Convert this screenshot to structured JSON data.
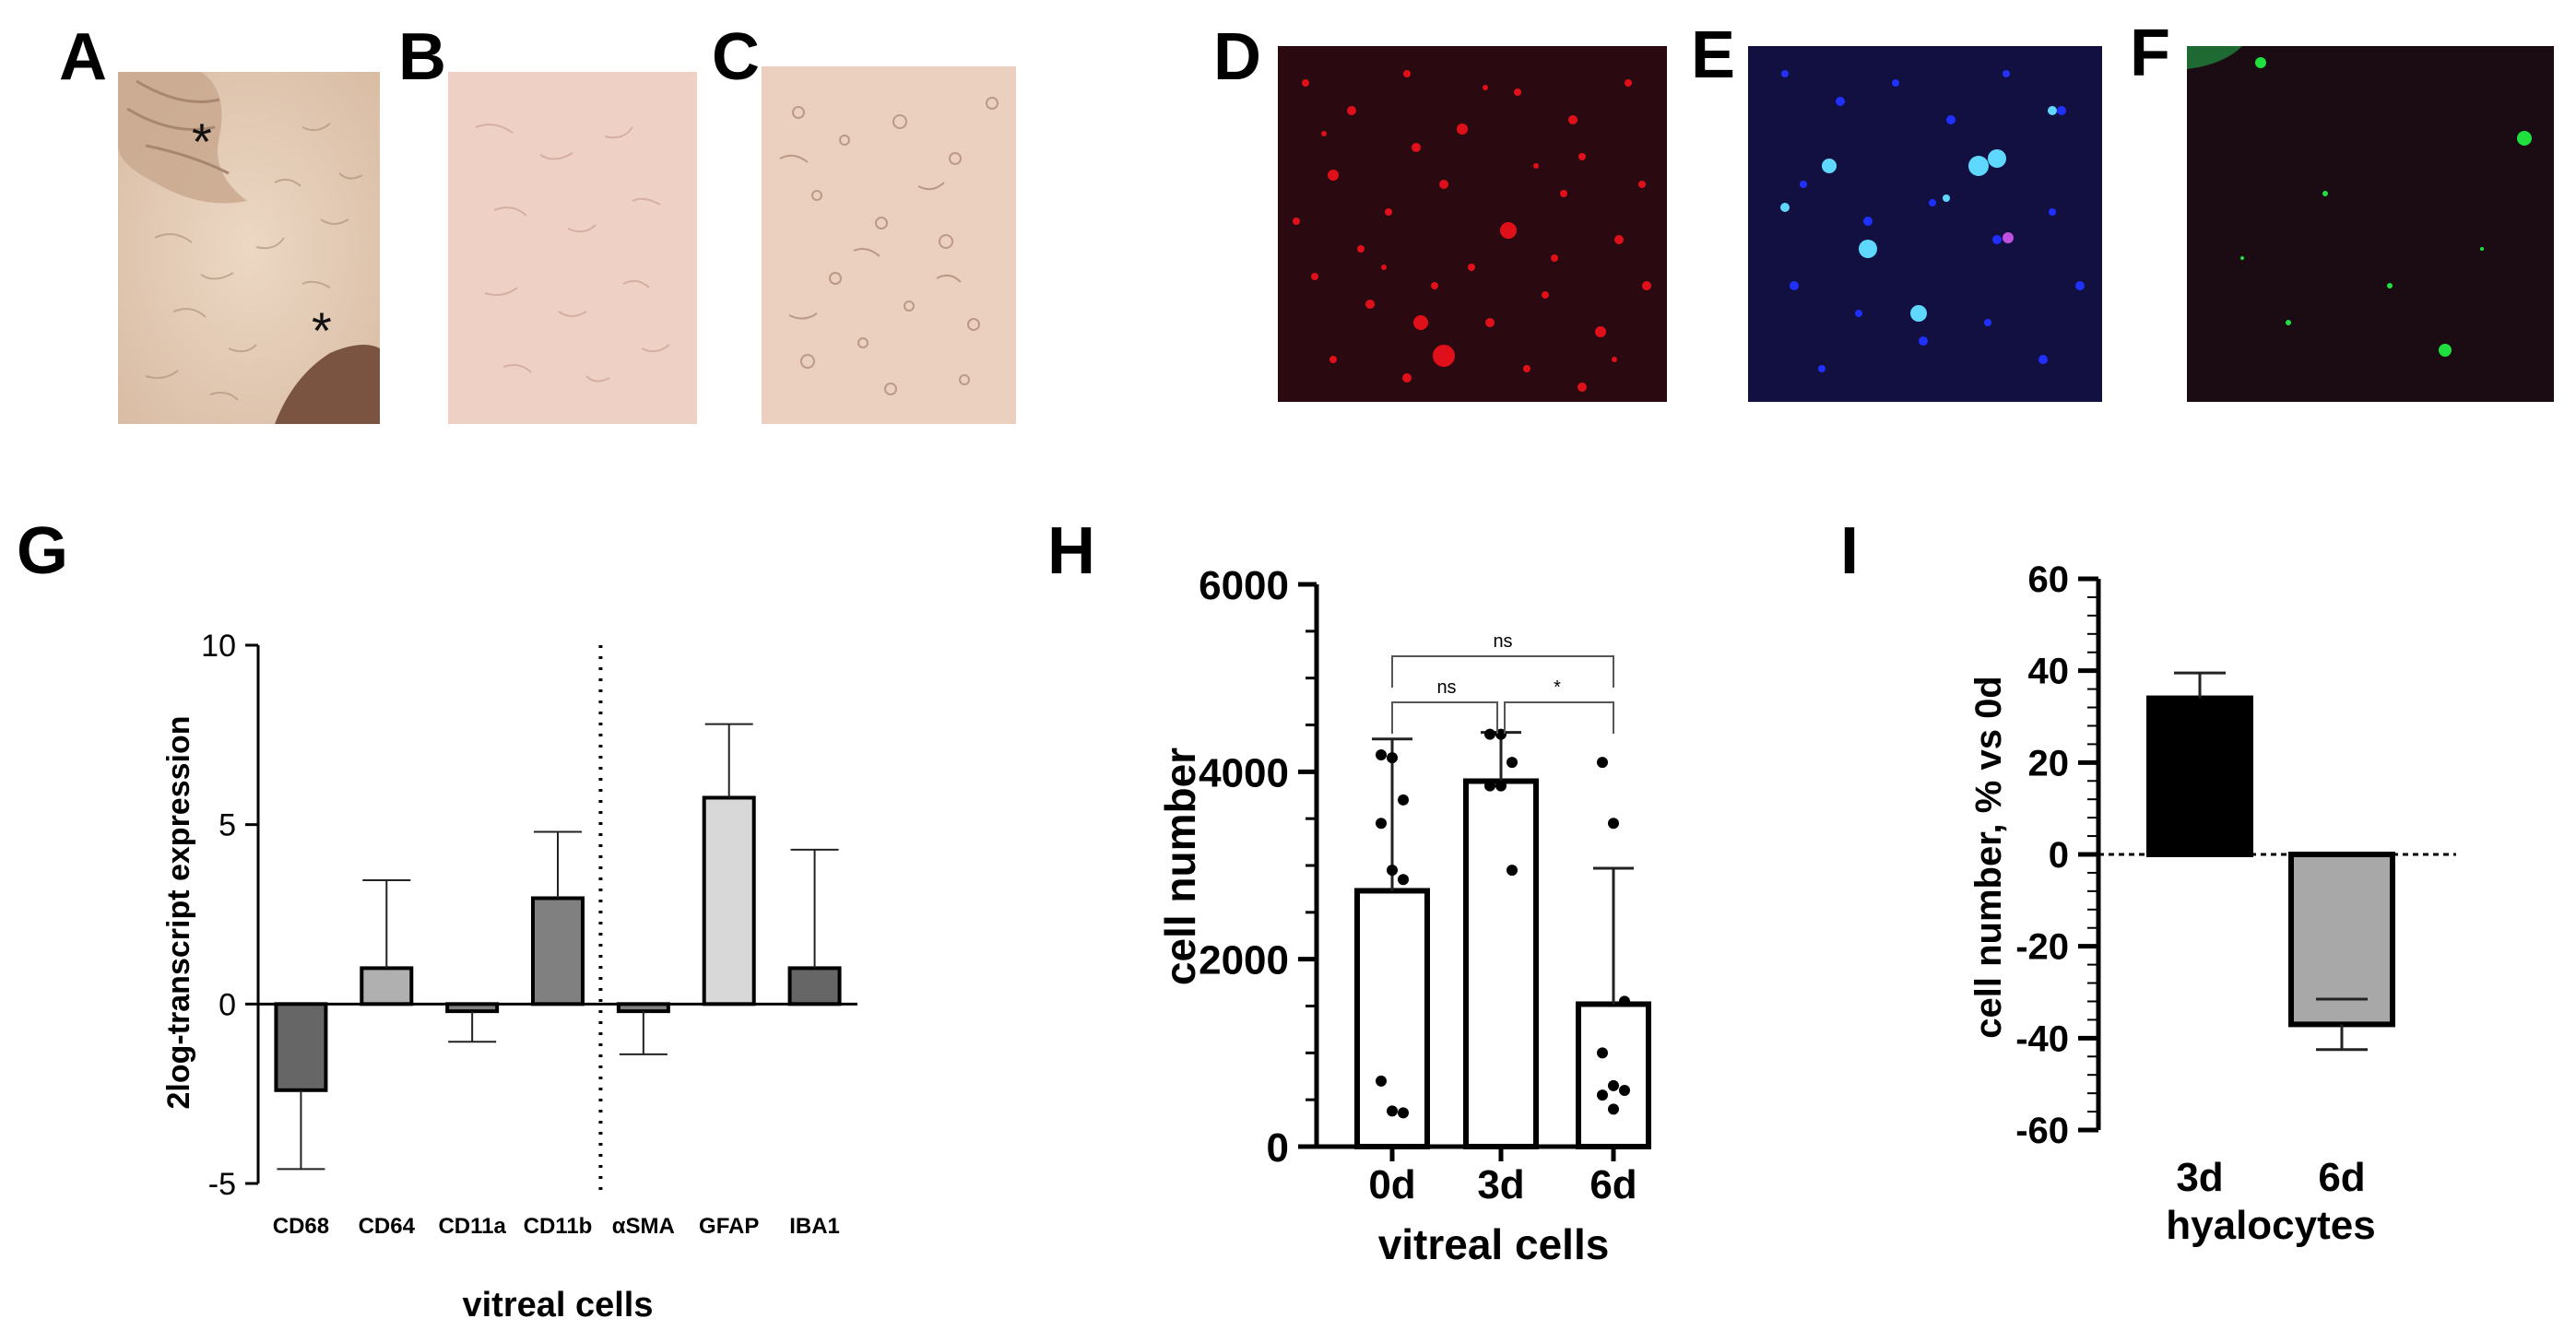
{
  "panels": {
    "A": "A",
    "B": "B",
    "C": "C",
    "D": "D",
    "E": "E",
    "F": "F",
    "G": "G",
    "H": "H",
    "I": "I"
  },
  "micrographs": {
    "A_markers": [
      "*",
      "*"
    ],
    "colors": {
      "brightfield": "#e8c8b8",
      "red_stain": "#e0101a",
      "blue_stain": "#2030ff",
      "cyan_stain": "#5fd8ff",
      "green_stain": "#20e040",
      "dark_bg": "#180c18"
    }
  },
  "chart_data": [
    {
      "id": "G",
      "type": "bar",
      "categories": [
        "CD68",
        "CD64",
        "CD11a",
        "CD11b",
        "αSMA",
        "GFAP",
        "IBA1"
      ],
      "values": [
        -2.4,
        1.0,
        -0.2,
        2.95,
        -0.2,
        5.75,
        1.0
      ],
      "error_bars": [
        2.2,
        2.45,
        0.85,
        1.85,
        1.2,
        2.05,
        3.3
      ],
      "bar_colors": [
        "#666666",
        "#b0b0b0",
        "#808080",
        "#808080",
        "#808080",
        "#d8d8d8",
        "#666666"
      ],
      "divider_after_index": 3,
      "ylim": [
        -5,
        10
      ],
      "yticks": [
        -5,
        0,
        5,
        10
      ],
      "ylabel": "2log-transcript expression",
      "xlabel": "vitreal cells",
      "title": ""
    },
    {
      "id": "H",
      "type": "bar",
      "categories": [
        "0d",
        "3d",
        "6d"
      ],
      "values": [
        2730,
        3900,
        1520
      ],
      "error_bars": [
        1620,
        520,
        1450
      ],
      "points": [
        [
          4180,
          4150,
          3700,
          3450,
          2950,
          2850,
          700,
          380,
          360
        ],
        [
          4400,
          4400,
          4100,
          3850,
          3850,
          2950
        ],
        [
          4100,
          3450,
          1550,
          1000,
          650,
          600,
          550,
          400
        ]
      ],
      "significance": [
        {
          "from": "0d",
          "to": "6d",
          "label": "ns"
        },
        {
          "from": "0d",
          "to": "3d",
          "label": "ns"
        },
        {
          "from": "3d",
          "to": "6d",
          "label": "*"
        }
      ],
      "ylim": [
        0,
        6000
      ],
      "yticks": [
        0,
        2000,
        4000,
        6000
      ],
      "ylabel": "cell number",
      "xlabel": "vitreal cells",
      "title": ""
    },
    {
      "id": "I",
      "type": "bar",
      "categories": [
        "3d",
        "6d"
      ],
      "values": [
        34,
        -37
      ],
      "error_bars": [
        5.5,
        5.5
      ],
      "bar_colors": [
        "#000000",
        "#a8a8a8"
      ],
      "ylim": [
        -60,
        60
      ],
      "yticks": [
        -60,
        -40,
        -20,
        0,
        20,
        40,
        60
      ],
      "ylabel": "cell number, % vs 0d",
      "xlabel": "hyalocytes",
      "title": ""
    }
  ]
}
